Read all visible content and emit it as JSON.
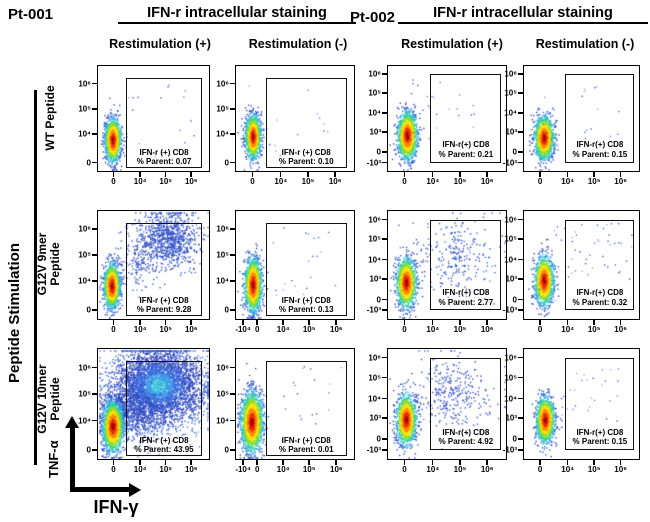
{
  "header": {
    "patient1": "Pt-001",
    "title1": "IFN-r intracellular staining",
    "patient2": "Pt-002",
    "title2": "IFN-r intracellular staining",
    "col_headers": [
      "Restimulation (+)",
      "Restimulation (-)",
      "Restimulation (+)",
      "Restimulation (-)"
    ]
  },
  "left_axis": {
    "group_label": "Peptide Stimulation",
    "row_label_lines": [
      [
        "WT Peptide"
      ],
      [
        "G12V 9mer",
        "Peptide"
      ],
      [
        "G12V 10mer",
        "Peptide"
      ]
    ]
  },
  "axis_arrows": {
    "x_label": "IFN-γ",
    "y_label": "TNF-α"
  },
  "colors": {
    "frame": "#000000",
    "heat_palette": [
      "#a80000",
      "#e63000",
      "#ff8a00",
      "#ffe100",
      "#86dd2e",
      "#2ecfae",
      "#29a0e2",
      "#2b5ad2",
      "#2742b8"
    ],
    "cloud_palette": [
      "#45c8da",
      "#3f9ce6",
      "#3a6cdc",
      "#3355cc",
      "#2c46bc",
      "#2c46bc",
      "#3355cc",
      "#3a6cdc",
      "#4a6ad8"
    ],
    "stray_palette": [
      "#3355cc",
      "#2c46bc",
      "#5577dd",
      "#88a0e8"
    ]
  },
  "chart_data": {
    "type": "scatter",
    "figure": "flow cytometry density plots, 3 peptide rows x 4 conditions",
    "plots": [
      {
        "patient": "Pt-001",
        "restimulation": "Restimulation (+)",
        "peptide": "WT Peptide",
        "gate_name": "IFN-r (+) CD8",
        "percent_parent": "% Parent: 0.07",
        "percent_value": 0.07,
        "x_ticks": [
          "0",
          "10⁴",
          "10⁵",
          "10⁶"
        ],
        "y_ticks": [
          "10⁶",
          "10⁵",
          "10⁴",
          "0"
        ],
        "populations": [
          {
            "type": "gauss",
            "palette": "heat",
            "cx": 0.13,
            "cy": 0.7,
            "sx": 0.035,
            "sy": 0.1,
            "n": 1500
          },
          {
            "type": "uniform",
            "x": 0.1,
            "y": 0.1,
            "w": 0.8,
            "h": 0.8,
            "n": 18
          }
        ]
      },
      {
        "patient": "Pt-001",
        "restimulation": "Restimulation (-)",
        "peptide": "WT Peptide",
        "gate_name": "IFN-r (+) CD8",
        "percent_parent": "% Parent: 0.10",
        "percent_value": 0.1,
        "x_ticks": [
          "0",
          "10⁴",
          "10⁵",
          "10⁶"
        ],
        "y_ticks": [
          "10⁶",
          "10⁵",
          "10⁴",
          "0"
        ],
        "populations": [
          {
            "type": "gauss",
            "palette": "heat",
            "cx": 0.14,
            "cy": 0.67,
            "sx": 0.032,
            "sy": 0.1,
            "n": 1400
          },
          {
            "type": "uniform",
            "x": 0.1,
            "y": 0.15,
            "w": 0.75,
            "h": 0.7,
            "n": 14
          }
        ]
      },
      {
        "patient": "Pt-002",
        "restimulation": "Restimulation (+)",
        "peptide": "WT Peptide",
        "gate_name": "IFN-r(+) CD8",
        "percent_parent": "% Parent: 0.21",
        "percent_value": 0.21,
        "x_ticks": [
          "0",
          "10⁴",
          "10⁵",
          "10⁶"
        ],
        "y_ticks": [
          "10⁶",
          "10⁵",
          "10⁴",
          "10³",
          "0",
          "-10³"
        ],
        "populations": [
          {
            "type": "gauss",
            "palette": "heat",
            "cx": 0.16,
            "cy": 0.66,
            "sx": 0.04,
            "sy": 0.11,
            "n": 1500
          },
          {
            "type": "uniform",
            "x": 0.15,
            "y": 0.1,
            "w": 0.6,
            "h": 0.6,
            "n": 26
          }
        ]
      },
      {
        "patient": "Pt-002",
        "restimulation": "Restimulation (-)",
        "peptide": "WT Peptide",
        "gate_name": "IFN-r(+) CD8",
        "percent_parent": "% Parent: 0.15",
        "percent_value": 0.15,
        "x_ticks": [
          "0",
          "10⁴",
          "10⁵",
          "10⁶"
        ],
        "y_ticks": [
          "10⁶",
          "10⁵",
          "10⁴",
          "10³",
          "0",
          "-10³"
        ],
        "populations": [
          {
            "type": "gauss",
            "palette": "heat",
            "cx": 0.17,
            "cy": 0.68,
            "sx": 0.04,
            "sy": 0.1,
            "n": 1400
          },
          {
            "type": "uniform",
            "x": 0.12,
            "y": 0.12,
            "w": 0.7,
            "h": 0.6,
            "n": 20
          }
        ]
      },
      {
        "patient": "Pt-001",
        "restimulation": "Restimulation (+)",
        "peptide": "G12V 9mer Peptide",
        "gate_name": "IFN-r (+) CD8",
        "percent_parent": "% Parent: 9.28",
        "percent_value": 9.28,
        "x_ticks": [
          "0",
          "10⁴",
          "10⁵",
          "10⁶"
        ],
        "y_ticks": [
          "10⁶",
          "10⁵",
          "10⁴",
          "0"
        ],
        "populations": [
          {
            "type": "gauss",
            "palette": "blue",
            "cx": 0.63,
            "cy": 0.26,
            "sx": 0.15,
            "sy": 0.13,
            "n": 950
          },
          {
            "type": "gauss",
            "palette": "blue",
            "cx": 0.35,
            "cy": 0.5,
            "sx": 0.1,
            "sy": 0.12,
            "n": 150
          },
          {
            "type": "gauss",
            "palette": "heat",
            "cx": 0.12,
            "cy": 0.69,
            "sx": 0.035,
            "sy": 0.1,
            "n": 1400
          }
        ]
      },
      {
        "patient": "Pt-001",
        "restimulation": "Restimulation (-)",
        "peptide": "G12V 9mer Peptide",
        "gate_name": "IFN-r (+) CD8",
        "percent_parent": "% Parent: 0.13",
        "percent_value": 0.13,
        "x_ticks": [
          "-10⁴",
          "0",
          "10⁴",
          "10⁵",
          "10⁶"
        ],
        "y_ticks": [
          "10⁶",
          "10⁵",
          "10⁴",
          "0"
        ],
        "populations": [
          {
            "type": "gauss",
            "palette": "heat",
            "cx": 0.14,
            "cy": 0.68,
            "sx": 0.035,
            "sy": 0.12,
            "n": 1600
          },
          {
            "type": "uniform",
            "x": 0.3,
            "y": 0.1,
            "w": 0.6,
            "h": 0.7,
            "n": 22
          }
        ]
      },
      {
        "patient": "Pt-002",
        "restimulation": "Restimulation (+)",
        "peptide": "G12V 9mer Peptide",
        "gate_name": "IFN-r(+) CD8",
        "percent_parent": "% Parent: 2.77",
        "percent_value": 2.77,
        "x_ticks": [
          "0",
          "10⁴",
          "10⁵",
          "10⁶"
        ],
        "y_ticks": [
          "10⁶",
          "10⁵",
          "10⁴",
          "10³",
          "0",
          "-10³"
        ],
        "populations": [
          {
            "type": "gauss",
            "palette": "blue",
            "cx": 0.55,
            "cy": 0.42,
            "sx": 0.17,
            "sy": 0.16,
            "n": 260
          },
          {
            "type": "gauss",
            "palette": "heat",
            "cx": 0.15,
            "cy": 0.66,
            "sx": 0.04,
            "sy": 0.11,
            "n": 1400
          }
        ]
      },
      {
        "patient": "Pt-002",
        "restimulation": "Restimulation (-)",
        "peptide": "G12V 9mer Peptide",
        "gate_name": "IFN-r(+) CD8",
        "percent_parent": "% Parent: 0.32",
        "percent_value": 0.32,
        "x_ticks": [
          "0",
          "10⁴",
          "10⁵",
          "10⁶"
        ],
        "y_ticks": [
          "10⁶",
          "10⁵",
          "10⁴",
          "10³",
          "0",
          "-10³"
        ],
        "populations": [
          {
            "type": "gauss",
            "palette": "heat",
            "cx": 0.17,
            "cy": 0.64,
            "sx": 0.04,
            "sy": 0.11,
            "n": 1400
          },
          {
            "type": "uniform",
            "x": 0.25,
            "y": 0.1,
            "w": 0.6,
            "h": 0.5,
            "n": 40
          },
          {
            "type": "uniform",
            "x": 0.1,
            "y": 0.1,
            "w": 0.85,
            "h": 0.8,
            "n": 15
          }
        ]
      },
      {
        "patient": "Pt-001",
        "restimulation": "Restimulation (+)",
        "peptide": "G12V 10mer Peptide",
        "gate_name": "IFN-r (+) CD8",
        "percent_parent": "% Parent: 43.95",
        "percent_value": 43.95,
        "x_ticks": [
          "0",
          "10⁴",
          "10⁵",
          "10⁶"
        ],
        "y_ticks": [
          "10⁶",
          "10⁵",
          "10⁴",
          "0"
        ],
        "populations": [
          {
            "type": "gauss",
            "palette": "cloud",
            "cx": 0.54,
            "cy": 0.33,
            "sx": 0.2,
            "sy": 0.17,
            "n": 4300
          },
          {
            "type": "gauss",
            "palette": "blue",
            "cx": 0.3,
            "cy": 0.55,
            "sx": 0.13,
            "sy": 0.13,
            "n": 700
          },
          {
            "type": "uniform",
            "x": 0.05,
            "y": 0.05,
            "w": 0.9,
            "h": 0.9,
            "n": 60
          },
          {
            "type": "gauss",
            "palette": "heat",
            "cx": 0.13,
            "cy": 0.7,
            "sx": 0.045,
            "sy": 0.11,
            "n": 1900
          }
        ]
      },
      {
        "patient": "Pt-001",
        "restimulation": "Restimulation (-)",
        "peptide": "G12V 10mer Peptide",
        "gate_name": "IFN-r (+) CD8",
        "percent_parent": "% Parent: 0.01",
        "percent_value": 0.01,
        "x_ticks": [
          "-10⁴",
          "0",
          "10⁴",
          "10⁵",
          "10⁶"
        ],
        "y_ticks": [
          "10⁶",
          "10⁵",
          "10⁴",
          "0"
        ],
        "populations": [
          {
            "type": "gauss",
            "palette": "heat",
            "cx": 0.13,
            "cy": 0.66,
            "sx": 0.045,
            "sy": 0.13,
            "n": 2000
          },
          {
            "type": "uniform",
            "x": 0.3,
            "y": 0.15,
            "w": 0.6,
            "h": 0.6,
            "n": 18
          }
        ]
      },
      {
        "patient": "Pt-002",
        "restimulation": "Restimulation (+)",
        "peptide": "G12V 10mer Peptide",
        "gate_name": "IFN-r(+) CD8",
        "percent_parent": "% Parent: 4.92",
        "percent_value": 4.92,
        "x_ticks": [
          "0",
          "10⁴",
          "10⁵",
          "10⁶"
        ],
        "y_ticks": [
          "10⁶",
          "10⁵",
          "10⁴",
          "10³",
          "0",
          "-10³"
        ],
        "populations": [
          {
            "type": "gauss",
            "palette": "blue",
            "cx": 0.53,
            "cy": 0.4,
            "sx": 0.17,
            "sy": 0.15,
            "n": 330
          },
          {
            "type": "gauss",
            "palette": "heat",
            "cx": 0.15,
            "cy": 0.64,
            "sx": 0.04,
            "sy": 0.11,
            "n": 1400
          }
        ]
      },
      {
        "patient": "Pt-002",
        "restimulation": "Restimulation (-)",
        "peptide": "G12V 10mer Peptide",
        "gate_name": "IFN-r(+) CD8",
        "percent_parent": "% Parent: 0.15",
        "percent_value": 0.15,
        "x_ticks": [
          "0",
          "10⁴",
          "10⁵",
          "10⁶"
        ],
        "y_ticks": [
          "10⁶",
          "10⁵",
          "10⁴",
          "10³",
          "0",
          "-10³"
        ],
        "populations": [
          {
            "type": "gauss",
            "palette": "heat",
            "cx": 0.18,
            "cy": 0.64,
            "sx": 0.038,
            "sy": 0.1,
            "n": 1400
          },
          {
            "type": "uniform",
            "x": 0.3,
            "y": 0.15,
            "w": 0.55,
            "h": 0.55,
            "n": 28
          }
        ]
      }
    ]
  }
}
